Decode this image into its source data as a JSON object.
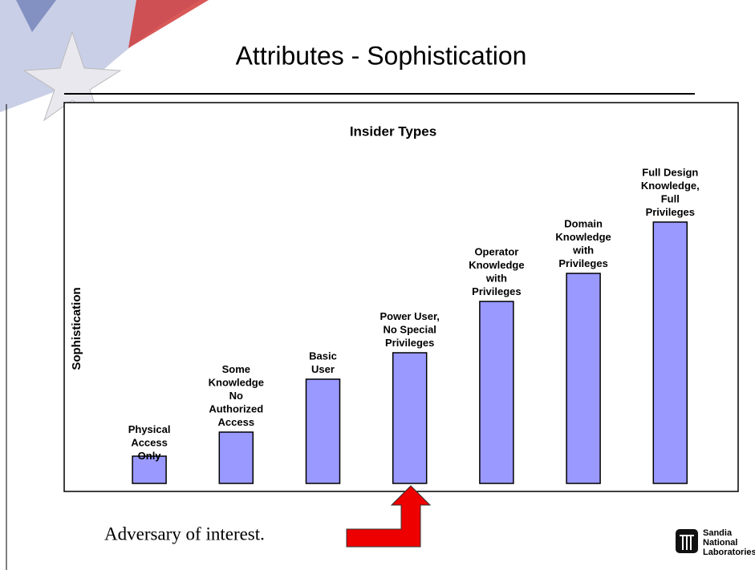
{
  "slide": {
    "title": "Attributes - Sophistication",
    "annotation": "Adversary of interest.",
    "logo": [
      "Sandia",
      "National",
      "Laboratories"
    ]
  },
  "chart_data": {
    "type": "bar",
    "title": "Insider Types",
    "y_label": "Sophistication",
    "color": "#9999ff",
    "categories": [
      [
        "Physical",
        "Access",
        "Only"
      ],
      [
        "Some",
        "Knowledge",
        "No",
        "Authorized",
        "Access"
      ],
      [
        "Basic",
        "User"
      ],
      [
        "Power User,",
        "No Special",
        "Privileges"
      ],
      [
        "Operator",
        "Knowledge",
        "with",
        "Privileges"
      ],
      [
        "Domain",
        "Knowledge",
        "with",
        "Privileges"
      ],
      [
        "Full Design",
        "Knowledge,",
        "Full",
        "Privileges"
      ]
    ],
    "values": [
      34,
      64,
      130,
      163,
      227,
      262,
      326
    ]
  }
}
